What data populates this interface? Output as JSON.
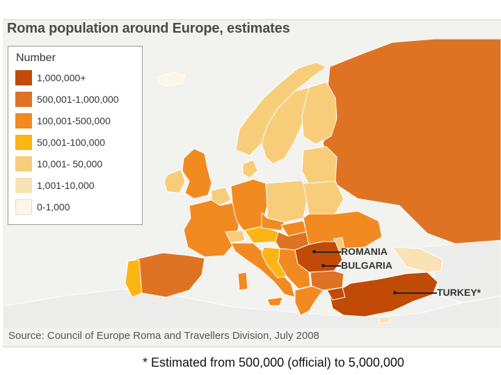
{
  "title": "Roma population around Europe, estimates",
  "legend": {
    "title": "Number",
    "items": [
      {
        "label": "1,000,000+",
        "color": "#c14a06"
      },
      {
        "label": "500,001-1,000,000",
        "color": "#df7324"
      },
      {
        "label": "100,001-500,000",
        "color": "#f28a22"
      },
      {
        "label": "50,001-100,000",
        "color": "#fbb514"
      },
      {
        "label": "10,001- 50,000",
        "color": "#f8cd7a"
      },
      {
        "label": "1,001-10,000",
        "color": "#fae2b4"
      },
      {
        "label": "0-1,000",
        "color": "#fdf7ea"
      }
    ]
  },
  "colors": {
    "sea": "#f2f2ee",
    "non_europe": "#ececea",
    "border": "#ffffff"
  },
  "callouts": [
    {
      "label": "ROMANIA"
    },
    {
      "label": "BULGARIA"
    },
    {
      "label": "TURKEY*"
    }
  ],
  "source": "Source: Council of Europe Roma and Travellers Division, July 2008",
  "footnote": "* Estimated from 500,000 (official) to 5,000,000"
}
